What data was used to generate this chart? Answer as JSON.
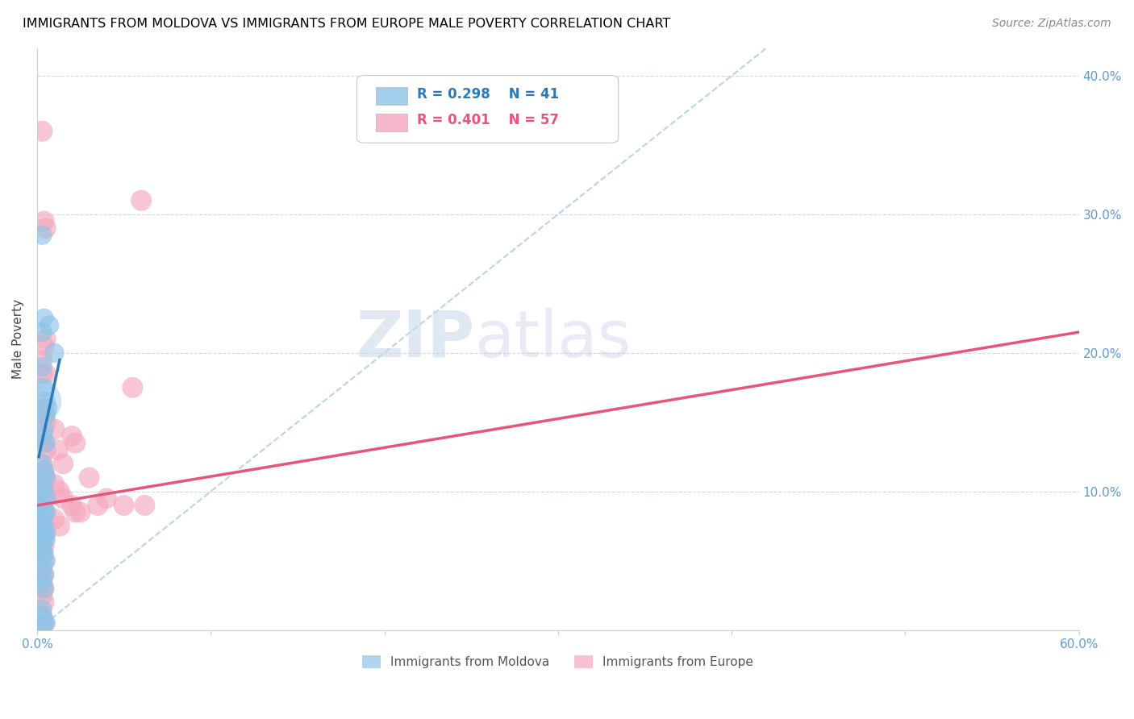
{
  "title": "IMMIGRANTS FROM MOLDOVA VS IMMIGRANTS FROM EUROPE MALE POVERTY CORRELATION CHART",
  "source": "Source: ZipAtlas.com",
  "ylabel": "Male Poverty",
  "x_min": 0.0,
  "x_max": 0.6,
  "y_min": 0.0,
  "y_max": 0.42,
  "moldova_color": "#8ec4e8",
  "europe_color": "#f4a8be",
  "moldova_line_color": "#2c7bb6",
  "europe_line_color": "#e8547a",
  "diagonal_color": "#b8d4e8",
  "background_color": "#ffffff",
  "grid_color": "#d0d8e0",
  "moldova_scatter": [
    [
      0.003,
      0.215
    ],
    [
      0.004,
      0.225
    ],
    [
      0.003,
      0.19
    ],
    [
      0.004,
      0.175
    ],
    [
      0.005,
      0.165
    ],
    [
      0.005,
      0.155
    ],
    [
      0.006,
      0.16
    ],
    [
      0.003,
      0.14
    ],
    [
      0.004,
      0.145
    ],
    [
      0.005,
      0.135
    ],
    [
      0.003,
      0.12
    ],
    [
      0.004,
      0.115
    ],
    [
      0.005,
      0.11
    ],
    [
      0.003,
      0.105
    ],
    [
      0.004,
      0.1
    ],
    [
      0.005,
      0.095
    ],
    [
      0.003,
      0.09
    ],
    [
      0.004,
      0.085
    ],
    [
      0.005,
      0.085
    ],
    [
      0.003,
      0.08
    ],
    [
      0.004,
      0.075
    ],
    [
      0.005,
      0.07
    ],
    [
      0.003,
      0.07
    ],
    [
      0.004,
      0.065
    ],
    [
      0.005,
      0.065
    ],
    [
      0.003,
      0.06
    ],
    [
      0.004,
      0.055
    ],
    [
      0.005,
      0.05
    ],
    [
      0.003,
      0.045
    ],
    [
      0.004,
      0.04
    ],
    [
      0.003,
      0.285
    ],
    [
      0.007,
      0.22
    ],
    [
      0.01,
      0.2
    ],
    [
      0.003,
      0.035
    ],
    [
      0.004,
      0.03
    ],
    [
      0.003,
      0.015
    ],
    [
      0.003,
      0.01
    ],
    [
      0.004,
      0.005
    ],
    [
      0.005,
      0.005
    ],
    [
      0.003,
      0.075
    ],
    [
      0.003,
      0.055
    ]
  ],
  "europe_scatter": [
    [
      0.003,
      0.36
    ],
    [
      0.004,
      0.295
    ],
    [
      0.005,
      0.29
    ],
    [
      0.003,
      0.195
    ],
    [
      0.004,
      0.205
    ],
    [
      0.005,
      0.21
    ],
    [
      0.003,
      0.185
    ],
    [
      0.005,
      0.185
    ],
    [
      0.003,
      0.16
    ],
    [
      0.004,
      0.155
    ],
    [
      0.005,
      0.15
    ],
    [
      0.003,
      0.14
    ],
    [
      0.004,
      0.135
    ],
    [
      0.005,
      0.13
    ],
    [
      0.003,
      0.12
    ],
    [
      0.004,
      0.115
    ],
    [
      0.005,
      0.11
    ],
    [
      0.003,
      0.105
    ],
    [
      0.004,
      0.1
    ],
    [
      0.005,
      0.095
    ],
    [
      0.003,
      0.09
    ],
    [
      0.004,
      0.085
    ],
    [
      0.005,
      0.085
    ],
    [
      0.003,
      0.08
    ],
    [
      0.004,
      0.075
    ],
    [
      0.005,
      0.07
    ],
    [
      0.003,
      0.065
    ],
    [
      0.004,
      0.06
    ],
    [
      0.003,
      0.055
    ],
    [
      0.004,
      0.05
    ],
    [
      0.003,
      0.045
    ],
    [
      0.004,
      0.04
    ],
    [
      0.003,
      0.035
    ],
    [
      0.004,
      0.03
    ],
    [
      0.003,
      0.025
    ],
    [
      0.004,
      0.02
    ],
    [
      0.003,
      0.01
    ],
    [
      0.004,
      0.005
    ],
    [
      0.01,
      0.145
    ],
    [
      0.012,
      0.13
    ],
    [
      0.015,
      0.12
    ],
    [
      0.01,
      0.105
    ],
    [
      0.013,
      0.1
    ],
    [
      0.015,
      0.095
    ],
    [
      0.01,
      0.08
    ],
    [
      0.013,
      0.075
    ],
    [
      0.02,
      0.14
    ],
    [
      0.022,
      0.135
    ],
    [
      0.02,
      0.09
    ],
    [
      0.022,
      0.085
    ],
    [
      0.025,
      0.085
    ],
    [
      0.03,
      0.11
    ],
    [
      0.035,
      0.09
    ],
    [
      0.04,
      0.095
    ],
    [
      0.05,
      0.09
    ],
    [
      0.055,
      0.175
    ],
    [
      0.06,
      0.31
    ],
    [
      0.062,
      0.09
    ]
  ],
  "moldova_line": [
    [
      0.001,
      0.125
    ],
    [
      0.013,
      0.195
    ]
  ],
  "europe_line": [
    [
      0.0,
      0.09
    ],
    [
      0.6,
      0.215
    ]
  ]
}
